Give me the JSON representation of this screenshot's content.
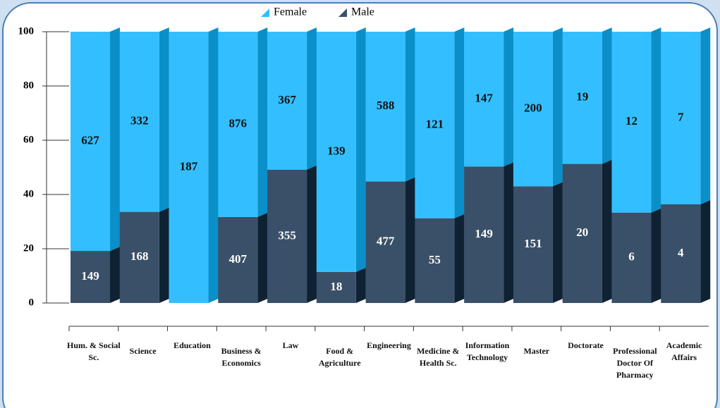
{
  "chart_data": {
    "type": "bar",
    "stacking": "percent",
    "categories": [
      "Hum. & Social Sc.",
      "Science",
      "Education",
      "Business & Economics",
      "Law",
      "Food & Agriculture",
      "Engineering",
      "Medicine & Health Sc.",
      "Information Technology",
      "Master",
      "Doctorate",
      "Professional Doctor Of Pharmacy",
      "Academic Affairs"
    ],
    "series": [
      {
        "name": "Male",
        "color": "#3a5068",
        "side_color": "#0f2233",
        "label_color": "#ffffff",
        "values": [
          149,
          168,
          null,
          407,
          355,
          18,
          477,
          55,
          149,
          151,
          20,
          6,
          4
        ]
      },
      {
        "name": "Female",
        "color": "#33bfff",
        "side_color": "#0a8fc8",
        "label_color": "#111111",
        "values": [
          627,
          332,
          187,
          876,
          367,
          139,
          588,
          121,
          147,
          200,
          19,
          12,
          7
        ]
      }
    ],
    "legend": "top",
    "ylim": [
      0,
      100
    ],
    "yticks": [
      0,
      20,
      40,
      60,
      80,
      100
    ]
  }
}
